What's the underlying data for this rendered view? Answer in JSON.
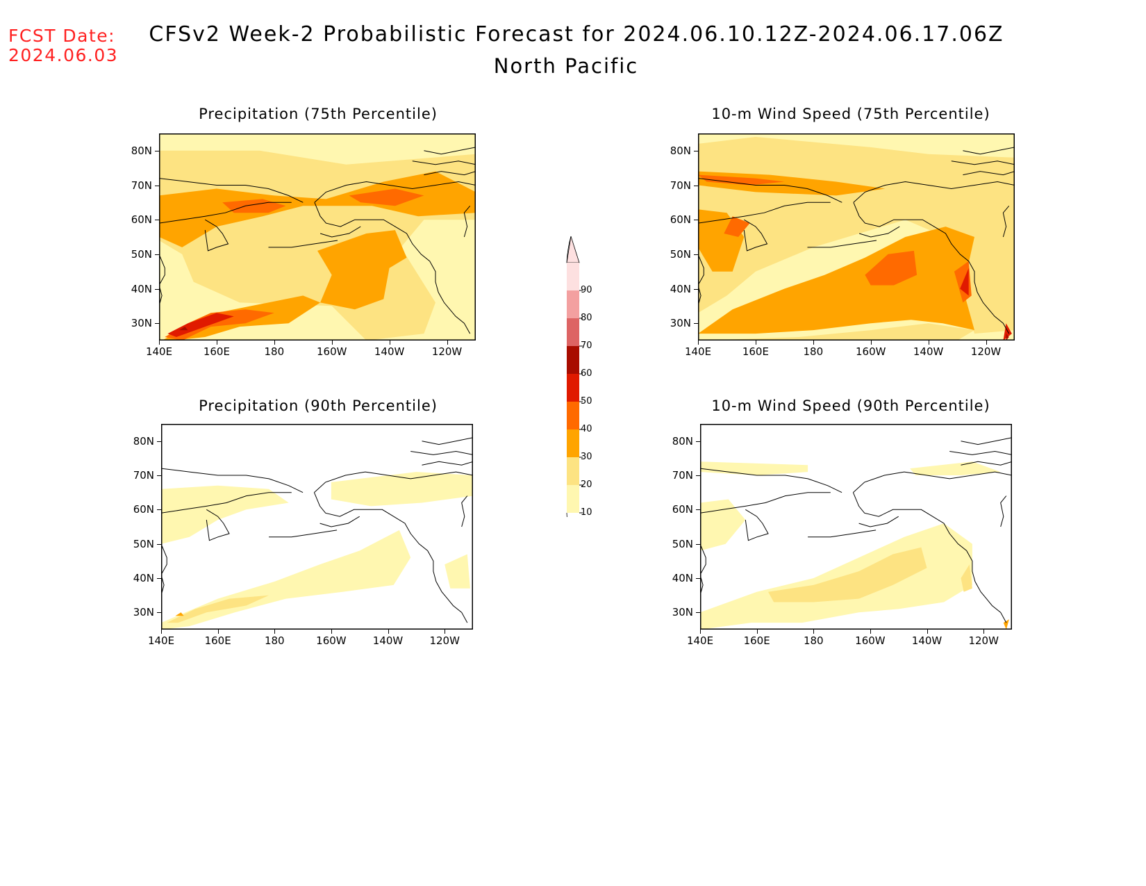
{
  "header": {
    "fcst_label": "FCST Date:",
    "fcst_date": "2024.06.03",
    "title": "CFSv2 Week-2 Probabilistic Forecast for 2024.06.10.12Z-2024.06.17.06Z",
    "region": "North Pacific"
  },
  "axes": {
    "lat_labels": [
      "80N",
      "70N",
      "60N",
      "50N",
      "40N",
      "30N"
    ],
    "lon_labels": [
      "140E",
      "160E",
      "180",
      "160W",
      "140W",
      "120W"
    ]
  },
  "panels": [
    {
      "id": "precip75",
      "title": "Precipitation (75th Percentile)"
    },
    {
      "id": "wind75",
      "title": "10-m Wind Speed (75th Percentile)"
    },
    {
      "id": "precip90",
      "title": "Precipitation (90th Percentile)"
    },
    {
      "id": "wind90",
      "title": "10-m Wind Speed (90th Percentile)"
    }
  ],
  "colorbar": {
    "levels": [
      "10",
      "20",
      "30",
      "40",
      "50",
      "60",
      "70",
      "80",
      "90"
    ],
    "colors": [
      "#fff7b0",
      "#fde382",
      "#ffa400",
      "#ff6a00",
      "#e01a00",
      "#a80c00",
      "#dd6464",
      "#f3a0a0",
      "#fde0e0"
    ]
  }
}
